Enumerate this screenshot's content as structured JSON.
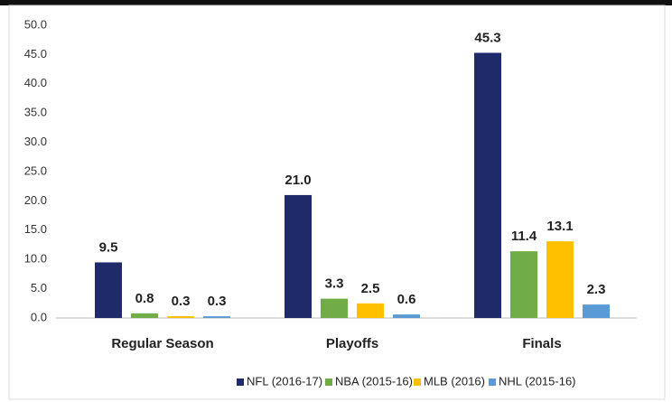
{
  "chart_data": {
    "type": "bar",
    "categories": [
      "Regular Season",
      "Playoffs",
      "Finals"
    ],
    "series": [
      {
        "name": "NFL (2016-17)",
        "color": "#1f2a6b",
        "values": [
          9.5,
          21.0,
          45.3
        ],
        "value_labels": [
          "9.5",
          "21.0",
          "45.3"
        ]
      },
      {
        "name": "NBA (2015-16)",
        "color": "#70ad47",
        "values": [
          0.8,
          3.3,
          11.4
        ],
        "value_labels": [
          "0.8",
          "3.3",
          "11.4"
        ]
      },
      {
        "name": "MLB (2016)",
        "color": "#ffc000",
        "values": [
          0.3,
          2.5,
          13.1
        ],
        "value_labels": [
          "0.3",
          "2.5",
          "13.1"
        ]
      },
      {
        "name": "NHL (2015-16)",
        "color": "#5b9bd5",
        "values": [
          0.3,
          0.6,
          2.3
        ],
        "value_labels": [
          "0.3",
          "0.6",
          "2.3"
        ]
      }
    ],
    "ylim": [
      0,
      50
    ],
    "yticks": [
      {
        "value": 0,
        "label": "0.0"
      },
      {
        "value": 5,
        "label": "5.0"
      },
      {
        "value": 10,
        "label": "10.0"
      },
      {
        "value": 15,
        "label": "15.0"
      },
      {
        "value": 20,
        "label": "20.0"
      },
      {
        "value": 25,
        "label": "25.0"
      },
      {
        "value": 30,
        "label": "30.0"
      },
      {
        "value": 35,
        "label": "35.0"
      },
      {
        "value": 40,
        "label": "40.0"
      },
      {
        "value": 45,
        "label": "45.0"
      },
      {
        "value": 50,
        "label": "50.0"
      }
    ],
    "grid": false,
    "legend": "bottom"
  }
}
